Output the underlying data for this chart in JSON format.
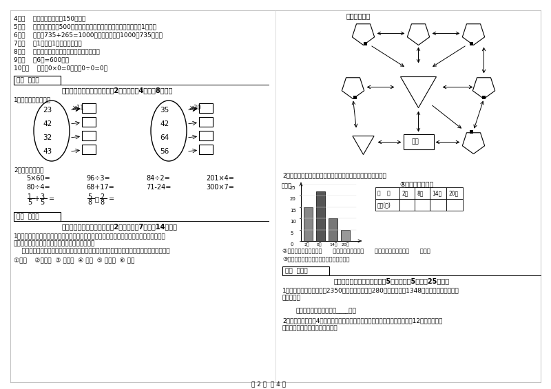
{
  "bg_color": "#ffffff",
  "text_color": "#000000",
  "title": "动物园导游图",
  "page_footer": "第 2 页  共 4 页",
  "left_lines": [
    "4．（    ）一本故事书约重150千克．",
    "5．（    ）小明家离学校500米，他每天上学、回家，一个来回一共要走1千米．",
    "6．（    ）根据735+265=1000，可以直接写出1000－735的差．",
    "7．（    ）1吨铁与1吨棉花一样重．",
    "8．（    ）长方形的周长就是它四条边长度的和．",
    "9．（    ）6分=600秒．",
    "10．（    ）因为0×0=0，所以0÷0=0．"
  ],
  "section4_header": "得分  评卷人",
  "section4_title": "四、看清题目，细心计算（共2小题，每题4分，共8分）。",
  "calc1_label": "1．算一算，填一填。",
  "oval1_numbers": [
    "23",
    "42",
    "32",
    "43"
  ],
  "oval1_op": "×11",
  "oval2_numbers": [
    "35",
    "42",
    "64",
    "56"
  ],
  "oval2_op": "×30",
  "calc2_label": "2．直接写得数。",
  "math_problems_row1": [
    "5×60=",
    "96÷3=",
    "84÷2=",
    "201×4="
  ],
  "math_problems_row2": [
    "80÷4=",
    "68+17=",
    "71-24=",
    "300×7="
  ],
  "section5_header": "得分  评卷人",
  "section5_title": "五、认真思考，综合能力（共2小题，每题7分，共14分）。",
  "section5_q1_lines": [
    "1．走进动物园大门，正北面是狮子山和熊猫馆，狮子山的东侧是飞禽馆，西侧是猴园。大象",
    "馆和鱼馆的场地分别在动物园的东北角和西北角。",
    "    根据小强的描述，请你把这些动物馆馆所在的位置，在动物园的导游图上用序号表示出来。"
  ],
  "section5_options": "①狮山    ②熊猫馆  ③ 飞禽馆  ④ 猴园  ⑤ 大象馆  ⑥ 鱼馆",
  "zoo_map_title": "动物园导游图",
  "chart_q_label": "2．下面是气温自测仪上记录的某天四个不同时间的气温情况：",
  "chart_y_label": "（度）",
  "chart_subtitle": "①根据统计图填表",
  "chart_times": [
    "2时",
    "8时",
    "14时",
    "20时"
  ],
  "chart_values": [
    15,
    22,
    10,
    5
  ],
  "chart_ylim": [
    0,
    25
  ],
  "chart_yticks": [
    0,
    5,
    10,
    15,
    20,
    25
  ],
  "table_header": [
    "时    间",
    "2时",
    "8时",
    "14时",
    "20时"
  ],
  "table_row_label": "气温(度)",
  "q2_line1": "②这一天的最高气温是（      ）度，最低气温是（      ）度，平均气温大约（      ）度。",
  "q2_line2": "③实际算一算，这天的平均气温是多少度？",
  "section6_header": "得分  评卷人",
  "section6_title": "六、活用知识，解决问题（共5小题，每题5分，共25分）。",
  "section6_q1_lines": [
    "1．学校图书室原有故事书2350本，现在又买来了280本，并借出了1348本，现在图书室有故事",
    "书多少本？"
  ],
  "section6_ans1": "答：现在图书室有故事书____本。",
  "section6_q2_lines": [
    "2．小华有一张边长4分米的手工纸，小伟的一张正方形手工纸边长比小华的短12厘米，小华的",
    "手工纸比小伟的大多少平方厘米？"
  ]
}
